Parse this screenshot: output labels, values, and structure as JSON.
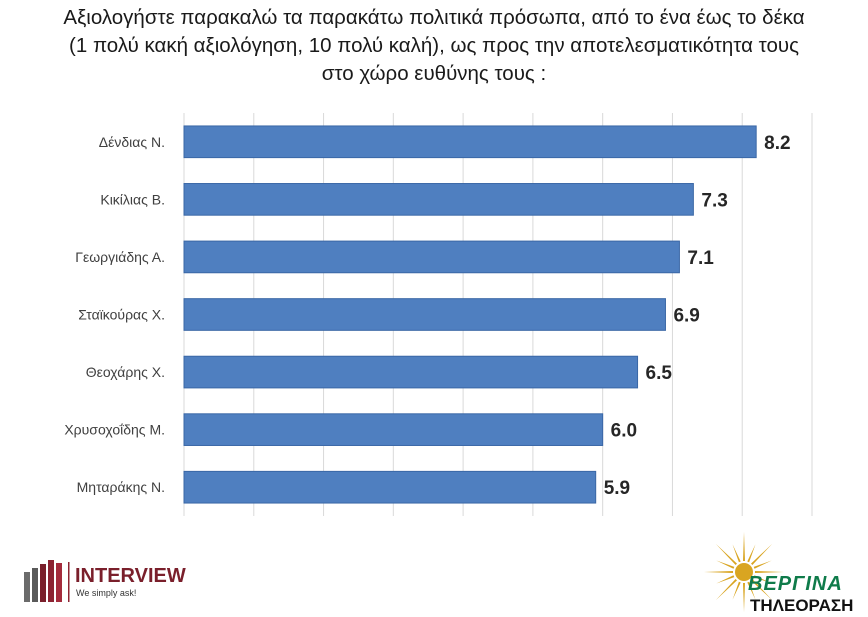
{
  "chart_data": {
    "type": "bar",
    "orientation": "horizontal",
    "title_lines": [
      "Αξιολογήστε παρακαλώ τα παρακάτω πολιτικά πρόσωπα, από το ένα έως το δέκα",
      "(1 πολύ κακή αξιολόγηση, 10 πολύ καλή), ως προς την αποτελεσματικότητα τους",
      "στο χώρο ευθύνης τους :"
    ],
    "categories": [
      "Δένδιας Ν.",
      "Κικίλιας Β.",
      "Γεωργιάδης Α.",
      "Σταϊκούρας Χ.",
      "Θεοχάρης Χ.",
      "Χρυσοχοΐδης Μ.",
      "Μηταράκης Ν."
    ],
    "values": [
      8.2,
      7.3,
      7.1,
      6.9,
      6.5,
      6.0,
      5.9
    ],
    "value_labels": [
      "8.2",
      "7.3",
      "7.1",
      "6.9",
      "6.5",
      "6.0",
      "5.9"
    ],
    "xlim": [
      0,
      9
    ],
    "grid": "vertical",
    "bar_color": "#4f7fc0",
    "bar_edge_color": "#3a67a6"
  },
  "logos": {
    "interview": {
      "name": "INTERVIEW",
      "tagline": "We simply ask!"
    },
    "vergina": {
      "top": "ΒΕΡΓΙΝΑ",
      "bottom": "ΤΗΛΕΟΡΑΣΗ"
    }
  }
}
